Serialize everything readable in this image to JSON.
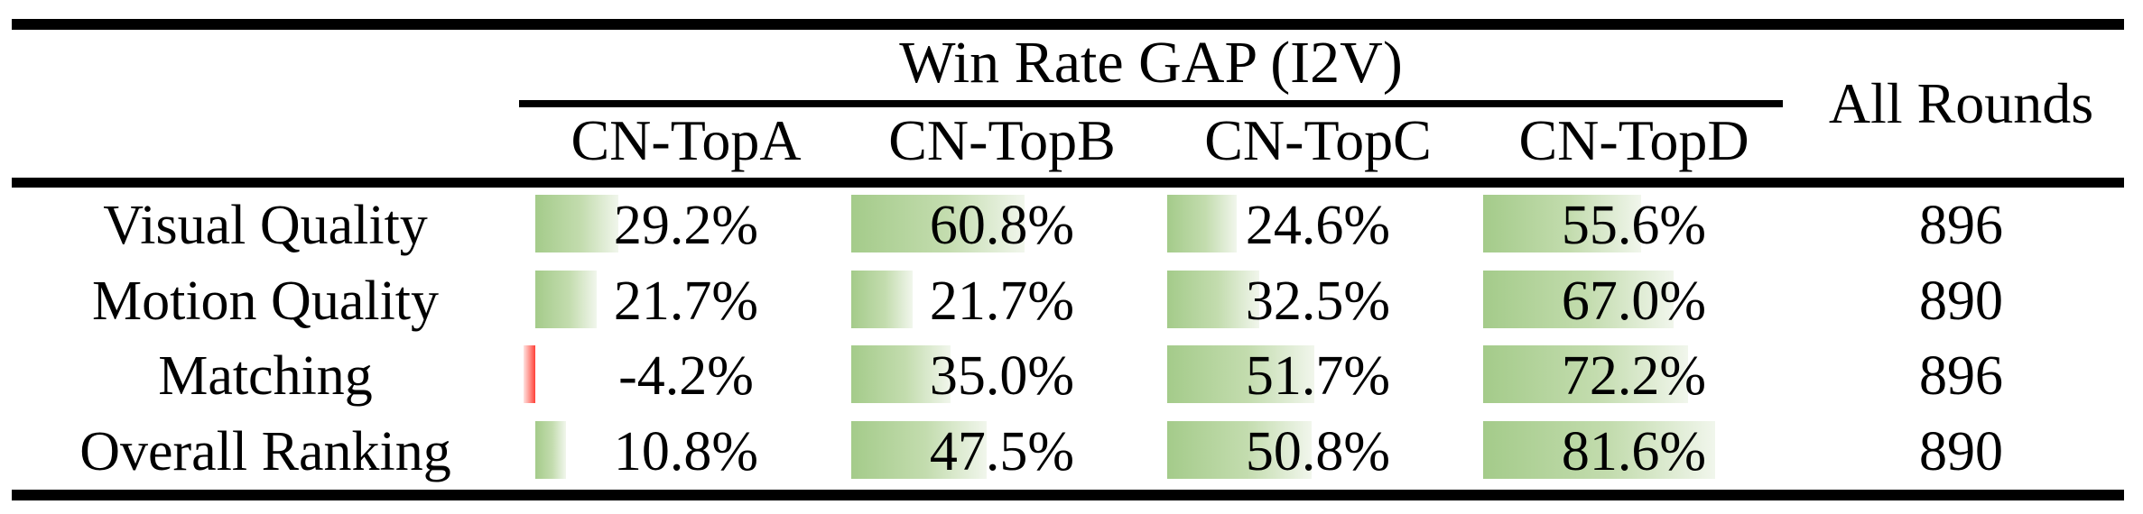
{
  "colors": {
    "rule_black": "#000000",
    "text_black": "#000000",
    "bar_positive_start": "#a4cb8a",
    "bar_positive_end": "#f1f6ec",
    "bar_negative_start": "#ffe3e1",
    "bar_negative_end": "#ff4038",
    "background": "#ffffff"
  },
  "table": {
    "group_header": "Win Rate GAP (I2V)",
    "all_rounds_header": "All Rounds",
    "columns": [
      "CN-TopA",
      "CN-TopB",
      "CN-TopC",
      "CN-TopD"
    ],
    "rows": [
      {
        "label": "Visual Quality",
        "values": [
          29.2,
          60.8,
          24.6,
          55.6
        ],
        "all_rounds": "896"
      },
      {
        "label": "Motion Quality",
        "values": [
          21.7,
          21.7,
          32.5,
          67.0
        ],
        "all_rounds": "890"
      },
      {
        "label": "Matching",
        "values": [
          -4.2,
          35.0,
          51.7,
          72.2
        ],
        "all_rounds": "896"
      },
      {
        "label": "Overall Ranking",
        "values": [
          10.8,
          47.5,
          50.8,
          81.6
        ],
        "all_rounds": "890"
      }
    ]
  },
  "chart_data": {
    "type": "table",
    "title": "Win Rate GAP (I2V)",
    "row_labels": [
      "Visual Quality",
      "Motion Quality",
      "Matching",
      "Overall Ranking"
    ],
    "series": [
      {
        "name": "CN-TopA",
        "values": [
          29.2,
          21.7,
          -4.2,
          10.8
        ]
      },
      {
        "name": "CN-TopB",
        "values": [
          60.8,
          21.7,
          35.0,
          47.5
        ]
      },
      {
        "name": "CN-TopC",
        "values": [
          24.6,
          32.5,
          51.7,
          50.8
        ]
      },
      {
        "name": "CN-TopD",
        "values": [
          55.6,
          67.0,
          72.2,
          81.6
        ]
      }
    ],
    "all_rounds": [
      896,
      890,
      896,
      890
    ],
    "units": "%",
    "layout_hints": "in-cell gradient data bars, left-anchored, width proportional to value; negative value drawn as red bar extending left of origin"
  }
}
